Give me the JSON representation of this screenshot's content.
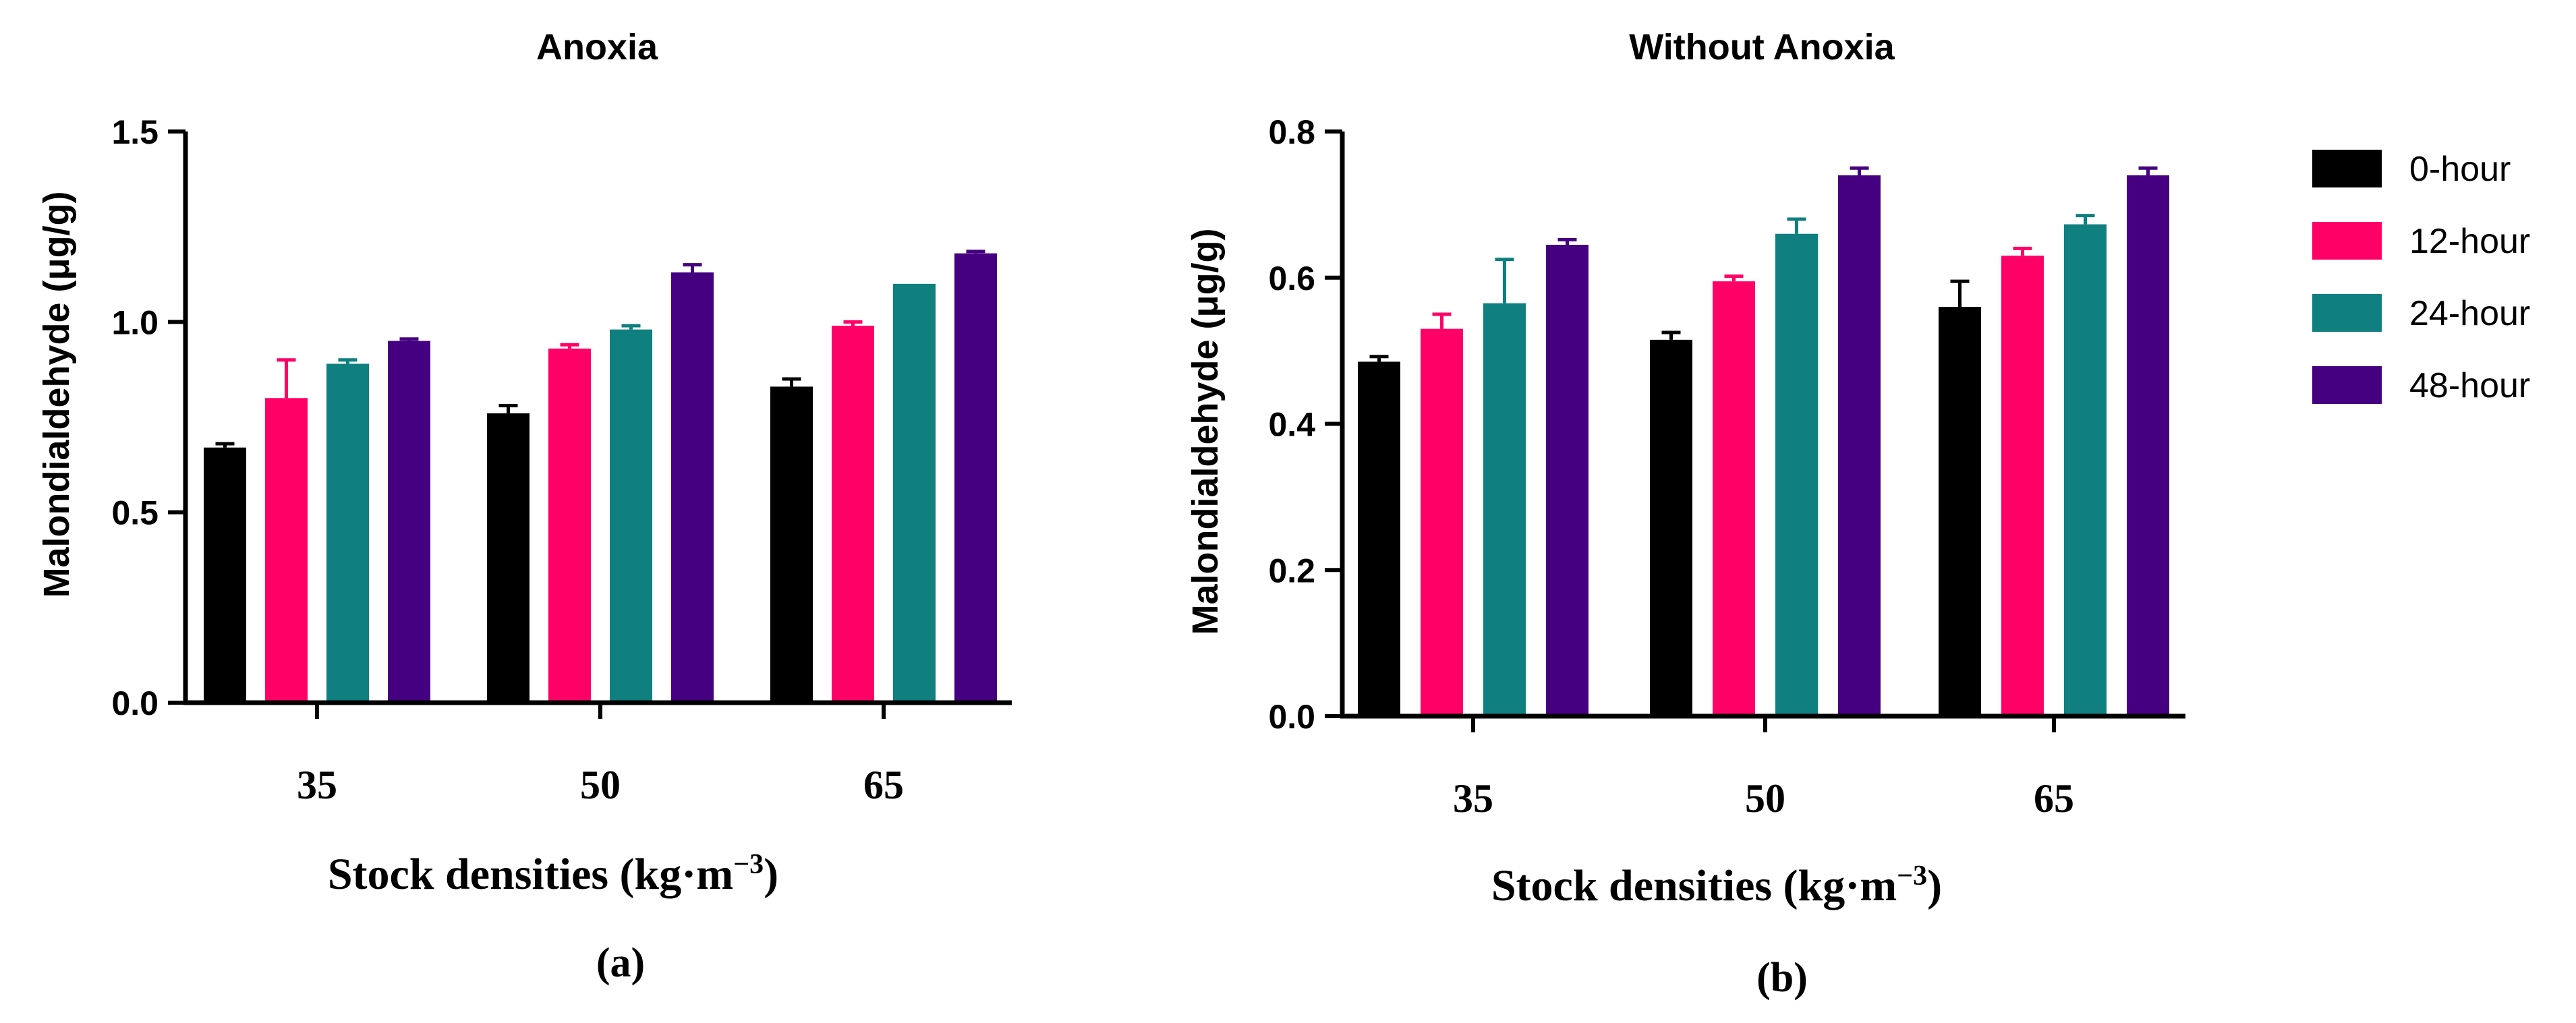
{
  "legend": {
    "entries": [
      {
        "name": "0-hour",
        "color": "#000000"
      },
      {
        "name": "12-hour",
        "color": "#ff0066"
      },
      {
        "name": "24-hour",
        "color": "#0f7f7f"
      },
      {
        "name": "48-hour",
        "color": "#440080"
      }
    ]
  },
  "chart_data": [
    {
      "type": "bar",
      "title": "Anoxia",
      "panel_label": "(a)",
      "xlabel": "Stock densities (kg·m",
      "xlabel_sup": "−3",
      "xlabel_close": ")",
      "ylabel": "Malondialdehyde (μg/g)",
      "categories": [
        "35",
        "50",
        "65"
      ],
      "ylim": [
        0,
        1.5
      ],
      "yticks": [
        0.0,
        0.5,
        1.0,
        1.5
      ],
      "ytick_labels": [
        "0.0",
        "0.5",
        "1.0",
        "1.5"
      ],
      "series": [
        {
          "name": "0-hour",
          "values": [
            0.67,
            0.76,
            0.83
          ],
          "errors": [
            0.01,
            0.02,
            0.02
          ]
        },
        {
          "name": "12-hour",
          "values": [
            0.8,
            0.93,
            0.99
          ],
          "errors": [
            0.1,
            0.01,
            0.01
          ]
        },
        {
          "name": "24-hour",
          "values": [
            0.89,
            0.98,
            1.1
          ],
          "errors": [
            0.01,
            0.01,
            0.0
          ]
        },
        {
          "name": "48-hour",
          "values": [
            0.95,
            1.13,
            1.18
          ],
          "errors": [
            0.005,
            0.02,
            0.005
          ]
        }
      ]
    },
    {
      "type": "bar",
      "title": "Without Anoxia",
      "panel_label": "(b)",
      "xlabel": "Stock densities (kg·m",
      "xlabel_sup": "−3",
      "xlabel_close": ")",
      "ylabel": "Malondialdehyde (μg/g)",
      "categories": [
        "35",
        "50",
        "65"
      ],
      "ylim": [
        0,
        0.8
      ],
      "yticks": [
        0.0,
        0.2,
        0.4,
        0.6,
        0.8
      ],
      "ytick_labels": [
        "0.0",
        "0.2",
        "0.4",
        "0.6",
        "0.8"
      ],
      "series": [
        {
          "name": "0-hour",
          "values": [
            0.485,
            0.515,
            0.56
          ],
          "errors": [
            0.007,
            0.01,
            0.035
          ]
        },
        {
          "name": "12-hour",
          "values": [
            0.53,
            0.595,
            0.63
          ],
          "errors": [
            0.02,
            0.007,
            0.01
          ]
        },
        {
          "name": "24-hour",
          "values": [
            0.565,
            0.66,
            0.673
          ],
          "errors": [
            0.06,
            0.02,
            0.012
          ]
        },
        {
          "name": "48-hour",
          "values": [
            0.645,
            0.74,
            0.74
          ],
          "errors": [
            0.007,
            0.01,
            0.01
          ]
        }
      ]
    }
  ]
}
